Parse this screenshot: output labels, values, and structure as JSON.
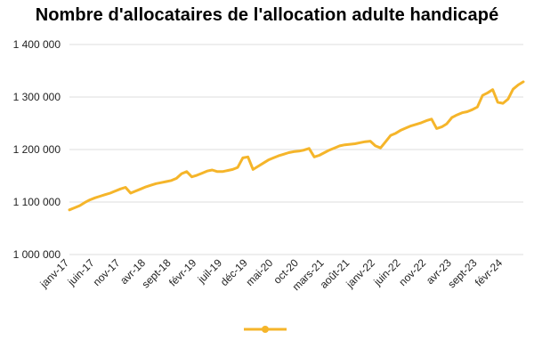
{
  "chart_data": {
    "type": "line",
    "title": "Nombre d'allocataires de l'allocation adulte handicapé",
    "xlabel": "",
    "ylabel": "",
    "ylim": [
      1000000,
      1400000
    ],
    "yticks": [
      1000000,
      1100000,
      1200000,
      1300000,
      1400000
    ],
    "ytick_labels": [
      "1 000 000",
      "1 100 000",
      "1 200 000",
      "1 300 000",
      "1 400 000"
    ],
    "grid": "horizontal",
    "legend": "bottom",
    "x_tick_every": 5,
    "x_tick_labels": [
      "janv-17",
      "juin-17",
      "nov-17",
      "avr-18",
      "sept-18",
      "févr-19",
      "juil-19",
      "déc-19",
      "mai-20",
      "oct-20",
      "mars-21",
      "août-21",
      "janv-22",
      "juin-22",
      "nov-22",
      "avr-23",
      "sept-23",
      "févr-24"
    ],
    "series": [
      {
        "color": "#F5B52A",
        "values": [
          1085000,
          1089000,
          1093000,
          1099000,
          1104000,
          1108000,
          1111000,
          1114000,
          1117000,
          1121000,
          1125000,
          1128000,
          1117000,
          1121000,
          1125000,
          1129000,
          1132000,
          1135000,
          1137000,
          1139000,
          1141000,
          1145000,
          1154000,
          1158000,
          1148000,
          1151000,
          1155000,
          1159000,
          1161000,
          1158000,
          1158000,
          1160000,
          1162000,
          1166000,
          1184000,
          1186000,
          1162000,
          1168000,
          1174000,
          1180000,
          1184000,
          1188000,
          1191000,
          1194000,
          1196000,
          1197000,
          1199000,
          1202000,
          1186000,
          1189000,
          1194000,
          1199000,
          1203000,
          1207000,
          1209000,
          1210000,
          1211000,
          1213000,
          1215000,
          1216000,
          1207000,
          1203000,
          1215000,
          1227000,
          1231000,
          1237000,
          1241000,
          1245000,
          1248000,
          1251000,
          1255000,
          1258000,
          1240000,
          1243000,
          1249000,
          1261000,
          1266000,
          1270000,
          1272000,
          1276000,
          1281000,
          1303000,
          1308000,
          1314000,
          1290000,
          1288000,
          1296000,
          1315000,
          1323000,
          1329000
        ]
      }
    ]
  }
}
